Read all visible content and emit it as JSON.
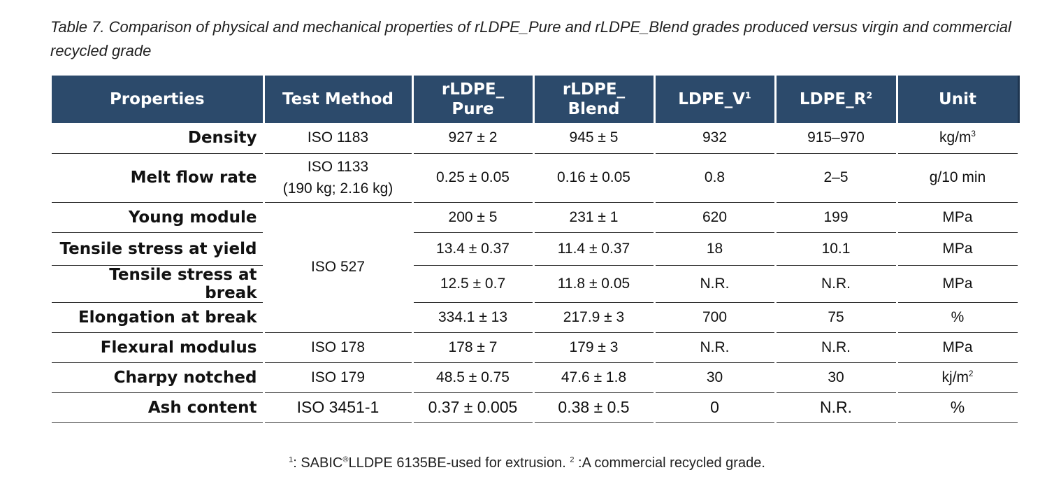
{
  "caption": "Table 7. Comparison of physical and mechanical properties of rLDPE_Pure and rLDPE_Blend grades produced versus virgin and commercial recycled grade",
  "headers": {
    "properties": "Properties",
    "test_method": "Test Method",
    "pure_line1": "rLDPE_",
    "pure_line2": "Pure",
    "blend_line1": "rLDPE_",
    "blend_line2": "Blend",
    "ldpe_v": "LDPE_V",
    "ldpe_v_sup": "1",
    "ldpe_r": "LDPE_R",
    "ldpe_r_sup": "2",
    "unit": "Unit"
  },
  "rows": [
    {
      "property": "Density",
      "method": "ISO 1183",
      "pure": "927 ± 2",
      "blend": "945 ± 5",
      "ldpe_v": "932",
      "ldpe_r": "915–970",
      "unit": "kg/m",
      "unit_sup": "3"
    },
    {
      "property": "Melt flow rate",
      "method_line1": "ISO 1133",
      "method_line2": "(190 kg; 2.16 kg)",
      "pure": "0.25 ± 0.05",
      "blend": "0.16 ± 0.05",
      "ldpe_v": "0.8",
      "ldpe_r": "2–5",
      "unit": "g/10 min"
    },
    {
      "property": "Young module",
      "method": "ISO 527",
      "pure": "200 ± 5",
      "blend": "231 ± 1",
      "ldpe_v": "620",
      "ldpe_r": "199",
      "unit": "MPa"
    },
    {
      "property": "Tensile stress at yield",
      "pure": "13.4 ± 0.37",
      "blend": "11.4 ± 0.37",
      "ldpe_v": "18",
      "ldpe_r": "10.1",
      "unit": "MPa"
    },
    {
      "property": "Tensile stress at break",
      "pure": "12.5 ± 0.7",
      "blend": "11.8 ± 0.05",
      "ldpe_v": "N.R.",
      "ldpe_r": "N.R.",
      "unit": "MPa"
    },
    {
      "property": "Elongation at break",
      "pure": "334.1 ± 13",
      "blend": "217.9 ± 3",
      "ldpe_v": "700",
      "ldpe_r": "75",
      "unit": "%"
    },
    {
      "property": "Flexural modulus",
      "method": "ISO 178",
      "pure": "178 ± 7",
      "blend": "179 ± 3",
      "ldpe_v": "N.R.",
      "ldpe_r": "N.R.",
      "unit": "MPa"
    },
    {
      "property": "Charpy notched",
      "method": "ISO 179",
      "pure": "48.5 ± 0.75",
      "blend": "47.6 ± 1.8",
      "ldpe_v": "30",
      "ldpe_r": "30",
      "unit": "kj/m",
      "unit_sup": "2"
    },
    {
      "property": "Ash content",
      "method": "ISO 3451-1",
      "pure": "0.37 ± 0.005",
      "blend": "0.38 ± 0.5",
      "ldpe_v": "0",
      "ldpe_r": "N.R.",
      "unit": "%"
    }
  ],
  "footnote": {
    "sup1": "1",
    "text1": ": SABIC",
    "reg": "®",
    "text2": "LLDPE 6135BE-used for extrusion. ",
    "sup2": "2",
    "text3": " :A commercial recycled grade."
  }
}
